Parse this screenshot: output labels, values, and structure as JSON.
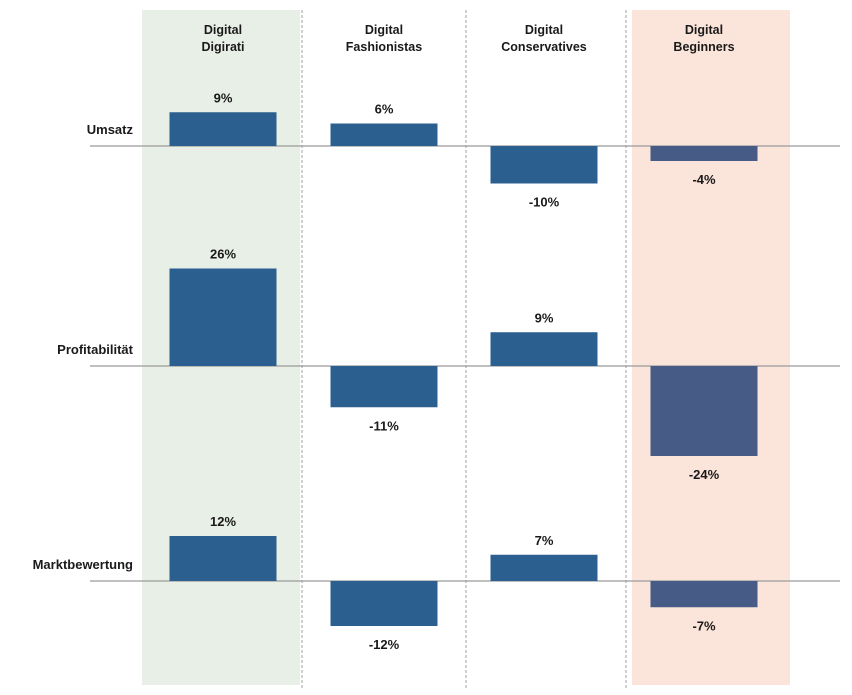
{
  "chart_data": {
    "type": "bar",
    "categories": [
      "Digital Digirati",
      "Digital Fashionistas",
      "Digital Conservatives",
      "Digital Beginners"
    ],
    "category_header_lines": [
      [
        "Digital",
        "Digirati"
      ],
      [
        "Digital",
        "Fashionistas"
      ],
      [
        "Digital",
        "Conservatives"
      ],
      [
        "Digital",
        "Beginners"
      ]
    ],
    "series": [
      {
        "name": "Umsatz",
        "values": [
          9,
          6,
          -10,
          -4
        ],
        "labels": [
          "9%",
          "6%",
          "-10%",
          "-4%"
        ]
      },
      {
        "name": "Profitabilität",
        "values": [
          26,
          -11,
          9,
          -24
        ],
        "labels": [
          "26%",
          "-11%",
          "9%",
          "-24%"
        ]
      },
      {
        "name": "Marktbewertung",
        "values": [
          12,
          -12,
          7,
          -7
        ],
        "labels": [
          "12%",
          "-12%",
          "7%",
          "-7%"
        ]
      }
    ],
    "unit": "%",
    "column_backgrounds": [
      "#e8efe6",
      "#ffffff",
      "#ffffff",
      "#fbe4da"
    ],
    "bar_colors": [
      "#2a5f8f",
      "#2a5f8f",
      "#2a5f8f",
      "#465b85"
    ],
    "baseline_color": "#9a9a9a",
    "divider_style": "dashed"
  }
}
